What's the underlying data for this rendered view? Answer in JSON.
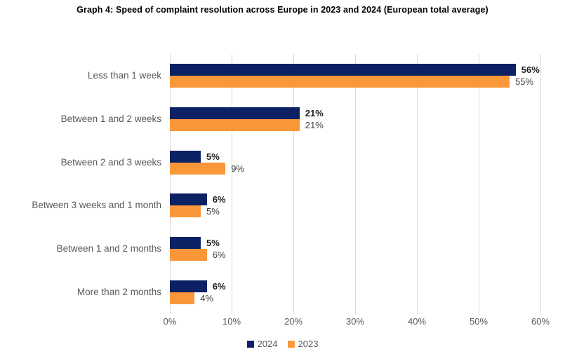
{
  "title": "Graph 4: Speed of complaint resolution across Europe in 2023 and 2024 (European total average)",
  "chart_data": {
    "type": "bar",
    "orientation": "horizontal",
    "title": "Graph 4: Speed of complaint resolution across Europe in 2023 and 2024 (European total average)",
    "categories": [
      "Less than 1 week",
      "Between 1 and 2 weeks",
      "Between 2 and 3 weeks",
      "Between 3 weeks and 1 month",
      "Between 1 and 2 months",
      "More than 2 months"
    ],
    "series": [
      {
        "name": "2024",
        "color": "#0B2163",
        "values": [
          56,
          21,
          5,
          6,
          5,
          6
        ],
        "labels": [
          "56%",
          "21%",
          "5%",
          "6%",
          "5%",
          "6%"
        ]
      },
      {
        "name": "2023",
        "color": "#FA9738",
        "values": [
          55,
          21,
          9,
          5,
          6,
          4
        ],
        "labels": [
          "55%",
          "21%",
          "9%",
          "5%",
          "6%",
          "4%"
        ]
      }
    ],
    "xlabel": "",
    "ylabel": "",
    "xlim": [
      0,
      60
    ],
    "xticks": {
      "values": [
        0,
        10,
        20,
        30,
        40,
        50,
        60
      ],
      "labels": [
        "0%",
        "10%",
        "20%",
        "30%",
        "40%",
        "50%",
        "60%"
      ]
    },
    "grid": "vertical",
    "legend_position": "bottom",
    "legend_entries": [
      "2024",
      "2023"
    ]
  },
  "colors": {
    "background": "#ffffff",
    "gridline": "#d9d9d9",
    "axis_text": "#595959",
    "category_text": "#595959",
    "value_label_2024": "#1f1f1f",
    "value_label_2023": "#3f3f3f",
    "title_text": "#000000",
    "legend_text": "#595959"
  }
}
